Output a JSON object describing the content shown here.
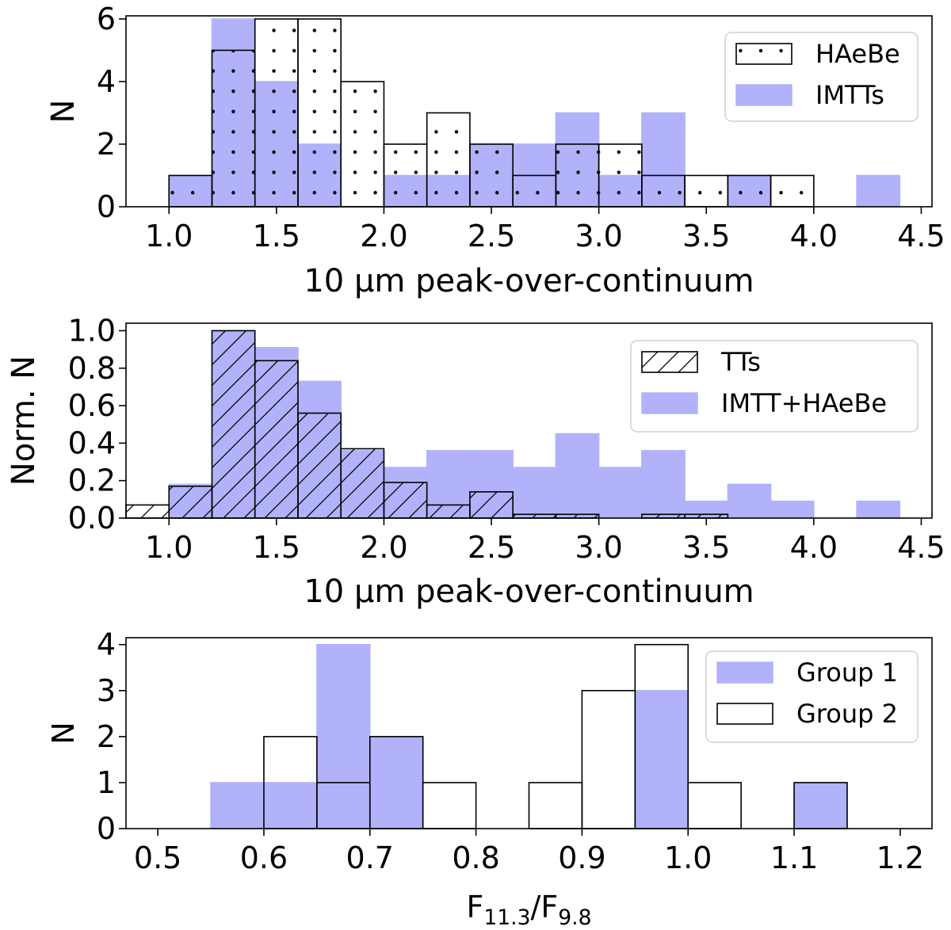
{
  "colors": {
    "fill": "#b2b2fa",
    "edge": "#000000",
    "axis": "#000000"
  },
  "chart_data": [
    {
      "type": "bar",
      "xlabel": "10 μm peak-over-continuum",
      "ylabel": "N",
      "xlim": [
        0.8,
        4.55
      ],
      "ylim": [
        0,
        6.1
      ],
      "xticks": [
        "1.0",
        "1.5",
        "2.0",
        "2.5",
        "3.0",
        "3.5",
        "4.0",
        "4.5"
      ],
      "yticks": [
        "0",
        "2",
        "4",
        "6"
      ],
      "bin_width": 0.2,
      "legend_position": "top-right",
      "series": [
        {
          "name": "HAeBe",
          "style": "dotted-outline",
          "bins": [
            0.8,
            1.0,
            1.2,
            1.4,
            1.6,
            1.8,
            2.0,
            2.2,
            2.4,
            2.6,
            2.8,
            3.0,
            3.2,
            3.4,
            3.6,
            3.8,
            4.0,
            4.2
          ],
          "values": [
            0,
            1,
            5,
            6,
            6,
            4,
            2,
            3,
            2,
            1,
            2,
            2,
            1,
            1,
            1,
            1,
            0,
            0
          ]
        },
        {
          "name": "IMTTs",
          "style": "filled",
          "bins": [
            0.8,
            1.0,
            1.2,
            1.4,
            1.6,
            1.8,
            2.0,
            2.2,
            2.4,
            2.6,
            2.8,
            3.0,
            3.2,
            3.4,
            3.6,
            3.8,
            4.0,
            4.2
          ],
          "values": [
            0,
            1,
            6,
            4,
            2,
            0,
            1,
            1,
            2,
            2,
            3,
            1,
            3,
            0,
            1,
            0,
            0,
            1
          ]
        }
      ]
    },
    {
      "type": "bar",
      "xlabel": "10 μm peak-over-continuum",
      "ylabel": "Norm. N",
      "xlim": [
        0.8,
        4.55
      ],
      "ylim": [
        0,
        1.04
      ],
      "xticks": [
        "1.0",
        "1.5",
        "2.0",
        "2.5",
        "3.0",
        "3.5",
        "4.0",
        "4.5"
      ],
      "yticks": [
        "0.0",
        "0.2",
        "0.4",
        "0.6",
        "0.8",
        "1.0"
      ],
      "bin_width": 0.2,
      "legend_position": "top-right",
      "series": [
        {
          "name": "TTs",
          "style": "hatched-outline",
          "bins": [
            0.8,
            1.0,
            1.2,
            1.4,
            1.6,
            1.8,
            2.0,
            2.2,
            2.4,
            2.6,
            2.8,
            3.0,
            3.2,
            3.4,
            3.6,
            3.8,
            4.0,
            4.2
          ],
          "values": [
            0.07,
            0.17,
            1.0,
            0.84,
            0.56,
            0.37,
            0.19,
            0.07,
            0.14,
            0.02,
            0.02,
            0.0,
            0.02,
            0.02,
            0.0,
            0.0,
            0.0,
            0.0
          ]
        },
        {
          "name": "IMTT+HAeBe",
          "style": "filled",
          "bins": [
            0.8,
            1.0,
            1.2,
            1.4,
            1.6,
            1.8,
            2.0,
            2.2,
            2.4,
            2.6,
            2.8,
            3.0,
            3.2,
            3.4,
            3.6,
            3.8,
            4.0,
            4.2
          ],
          "values": [
            0,
            0.18,
            1.0,
            0.91,
            0.73,
            0.36,
            0.27,
            0.36,
            0.36,
            0.27,
            0.45,
            0.27,
            0.36,
            0.09,
            0.18,
            0.09,
            0.0,
            0.09
          ]
        }
      ]
    },
    {
      "type": "bar",
      "xlabel": "F",
      "xlabel_sub1": "11.3",
      "xlabel_mid": "/F",
      "xlabel_sub2": "9.8",
      "ylabel": "N",
      "xlim": [
        0.47,
        1.23
      ],
      "ylim": [
        0,
        4.15
      ],
      "xticks": [
        "0.5",
        "0.6",
        "0.7",
        "0.8",
        "0.9",
        "1.0",
        "1.1",
        "1.2"
      ],
      "yticks": [
        "0",
        "1",
        "2",
        "3",
        "4"
      ],
      "bin_width": 0.05,
      "legend_position": "top-right",
      "series": [
        {
          "name": "Group 1",
          "style": "filled",
          "bins": [
            0.55,
            0.6,
            0.65,
            0.7,
            0.95,
            1.1
          ],
          "values": [
            1,
            1,
            4,
            2,
            3,
            1
          ]
        },
        {
          "name": "Group 2",
          "style": "outline",
          "bins": [
            0.6,
            0.65,
            0.7,
            0.75,
            0.85,
            0.9,
            0.95,
            1.0,
            1.1
          ],
          "values": [
            2,
            1,
            2,
            1,
            1,
            3,
            4,
            1,
            1
          ]
        }
      ]
    }
  ]
}
